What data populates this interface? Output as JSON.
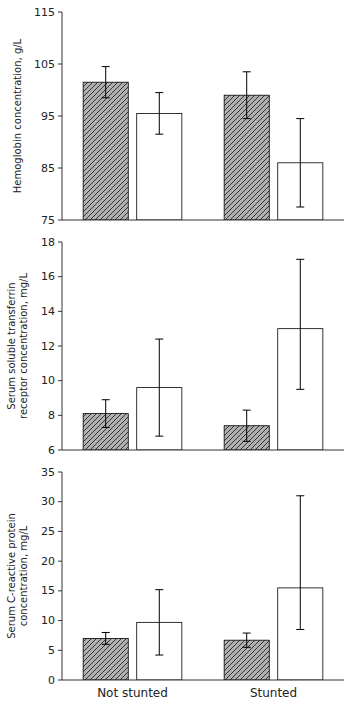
{
  "chart_data": [
    {
      "type": "bar",
      "ylabel": "Hemoglobin concentration, g/L",
      "categories": [
        null,
        null
      ],
      "ylim": [
        75,
        115
      ],
      "yticks": [
        75,
        85,
        95,
        105,
        115
      ],
      "grid": false,
      "series": [
        {
          "color": "#b0b0b0",
          "values": [
            101.5,
            99.0
          ],
          "err_lower": [
            3.0,
            4.5
          ],
          "err_upper": [
            3.0,
            4.5
          ]
        },
        {
          "color": "#ffffff",
          "values": [
            95.5,
            86.0
          ],
          "err_lower": [
            4.0,
            8.5
          ],
          "err_upper": [
            4.0,
            8.5
          ]
        }
      ]
    },
    {
      "type": "bar",
      "ylabel": "Serum soluble transferrin\nreceptor concentration, mg/L",
      "categories": [
        null,
        null
      ],
      "ylim": [
        6,
        18
      ],
      "yticks": [
        6,
        8,
        10,
        12,
        14,
        16,
        18
      ],
      "grid": false,
      "series": [
        {
          "color": "#b0b0b0",
          "values": [
            8.1,
            7.4
          ],
          "err_lower": [
            0.8,
            0.9
          ],
          "err_upper": [
            0.8,
            0.9
          ]
        },
        {
          "color": "#ffffff",
          "values": [
            9.6,
            13.0
          ],
          "err_lower": [
            2.8,
            3.5
          ],
          "err_upper": [
            2.8,
            4.0
          ]
        }
      ]
    },
    {
      "type": "bar",
      "ylabel": "Serum C-reactive protein\nconcentration, mg/L",
      "categories": [
        "Not stunted",
        "Stunted"
      ],
      "ylim": [
        0,
        35
      ],
      "yticks": [
        0,
        5,
        10,
        15,
        20,
        25,
        30,
        35
      ],
      "grid": false,
      "series": [
        {
          "color": "#b0b0b0",
          "values": [
            7.0,
            6.7
          ],
          "err_lower": [
            1.0,
            1.2
          ],
          "err_upper": [
            1.0,
            1.2
          ]
        },
        {
          "color": "#ffffff",
          "values": [
            9.7,
            15.5
          ],
          "err_lower": [
            5.5,
            7.0
          ],
          "err_upper": [
            5.5,
            15.5
          ]
        }
      ]
    }
  ]
}
